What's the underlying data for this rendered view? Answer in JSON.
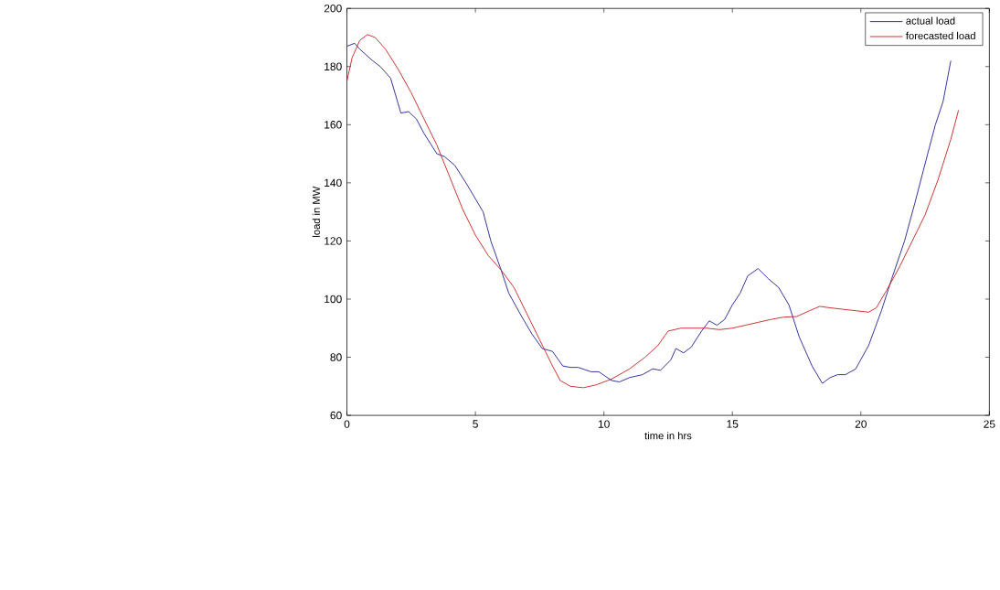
{
  "chart_data": {
    "type": "line",
    "xlabel": "time in hrs",
    "ylabel": "load in MW",
    "xlim": [
      0,
      25
    ],
    "ylim": [
      60,
      200
    ],
    "xticks": [
      0,
      5,
      10,
      15,
      20,
      25
    ],
    "yticks": [
      60,
      80,
      100,
      120,
      140,
      160,
      180,
      200
    ],
    "grid": false,
    "legend": "top right",
    "marker": "none",
    "line_style": "solid",
    "series": [
      {
        "name": "actual load",
        "color": "#1f1f8f",
        "x": [
          0,
          0.3,
          0.5,
          1,
          1.3,
          1.7,
          2.1,
          2.4,
          2.7,
          3,
          3.5,
          3.8,
          4.2,
          4.7,
          5.3,
          5.6,
          6,
          6.3,
          6.8,
          7.2,
          7.6,
          8,
          8.4,
          8.7,
          9,
          9.5,
          9.8,
          10.3,
          10.6,
          11,
          11.5,
          11.9,
          12.2,
          12.6,
          12.8,
          13.1,
          13.4,
          13.8,
          14.1,
          14.4,
          14.7,
          15,
          15.3,
          15.6,
          16,
          16.4,
          16.8,
          17.2,
          17.6,
          18.1,
          18.5,
          18.8,
          19.1,
          19.4,
          19.8,
          20.3,
          20.8,
          21.2,
          21.7,
          22.1,
          22.6,
          22.9,
          23.2,
          23.5
        ],
        "values": [
          187,
          188,
          186,
          182,
          180,
          176,
          164,
          164.5,
          162,
          157,
          150,
          149,
          146,
          139,
          130,
          120,
          110,
          102,
          94,
          88,
          83,
          82,
          77,
          76.5,
          76.5,
          75,
          75,
          72,
          71.5,
          73,
          74,
          76,
          75.5,
          79,
          83,
          81.5,
          83.5,
          89,
          92.5,
          91,
          93,
          98,
          102,
          108,
          110.5,
          107,
          104,
          98,
          87,
          77,
          71,
          73,
          74,
          74,
          76,
          84,
          96,
          107,
          120,
          133,
          150,
          160,
          168,
          182
        ]
      },
      {
        "name": "forecasted load",
        "color": "#c81e1e",
        "x": [
          0,
          0.2,
          0.5,
          0.8,
          1.1,
          1.5,
          2,
          2.5,
          3,
          3.5,
          4,
          4.5,
          5,
          5.5,
          6,
          6.5,
          7,
          7.5,
          8,
          8.3,
          8.7,
          9.2,
          9.7,
          10.3,
          11,
          11.6,
          12.1,
          12.5,
          13,
          13.5,
          14,
          14.5,
          15,
          15.5,
          16,
          16.5,
          17,
          17.5,
          18,
          18.4,
          18.8,
          19.3,
          19.8,
          20.3,
          20.6,
          21,
          21.5,
          22,
          22.5,
          23,
          23.5,
          23.8
        ],
        "values": [
          175,
          183,
          189,
          191,
          190,
          186,
          179,
          171,
          162,
          153,
          142,
          131,
          122,
          115,
          110,
          104,
          95,
          86,
          77,
          72,
          70,
          69.5,
          70.5,
          72.5,
          76,
          80,
          84,
          89,
          90,
          90,
          90,
          89.5,
          90,
          91,
          92,
          93,
          93.8,
          94,
          96,
          97.5,
          97,
          96.5,
          96,
          95.5,
          97,
          103,
          111,
          120,
          129,
          141,
          155,
          165
        ]
      }
    ]
  }
}
